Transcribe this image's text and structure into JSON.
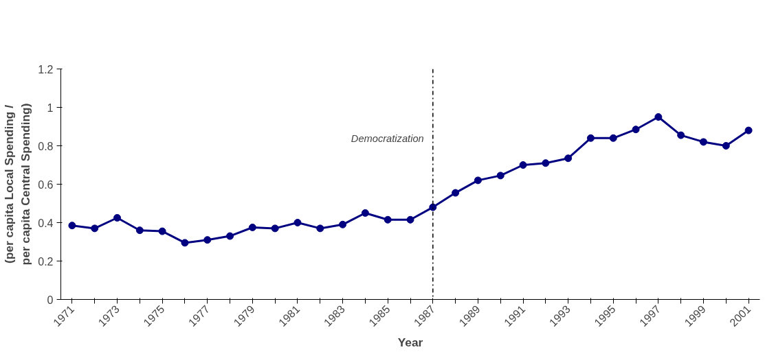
{
  "chart_data": {
    "type": "line",
    "xlabel": "Year",
    "ylabel": "(per capita Local Spending /\nper capita Central Spending)",
    "categories": [
      "1971",
      null,
      "1973",
      null,
      "1975",
      null,
      "1977",
      null,
      "1979",
      null,
      "1981",
      null,
      "1983",
      null,
      "1985",
      null,
      "1987",
      null,
      "1989",
      null,
      "1991",
      null,
      "1993",
      null,
      "1995",
      null,
      "1997",
      null,
      "1999",
      null,
      "2001"
    ],
    "series": [
      {
        "color": "#000080",
        "values": [
          0.385,
          0.37,
          0.425,
          0.36,
          0.355,
          0.295,
          0.31,
          0.33,
          0.375,
          0.37,
          0.4,
          0.37,
          0.39,
          0.45,
          0.415,
          0.415,
          0.48,
          0.555,
          0.62,
          0.645,
          0.7,
          0.71,
          0.735,
          0.84,
          0.84,
          0.885,
          0.95,
          0.855,
          0.82,
          0.8,
          0.88
        ]
      }
    ],
    "ylim": [
      0,
      1.2
    ],
    "yticks": [
      0,
      0.2,
      0.4,
      0.6,
      0.8,
      1,
      1.2
    ],
    "ref_lines": [
      {
        "axis": "x",
        "value": "1987",
        "label": "Democratization",
        "color": "#000000",
        "line_style": "dashdot"
      }
    ],
    "grid": false,
    "marker": "circle",
    "line_style": "solid"
  }
}
